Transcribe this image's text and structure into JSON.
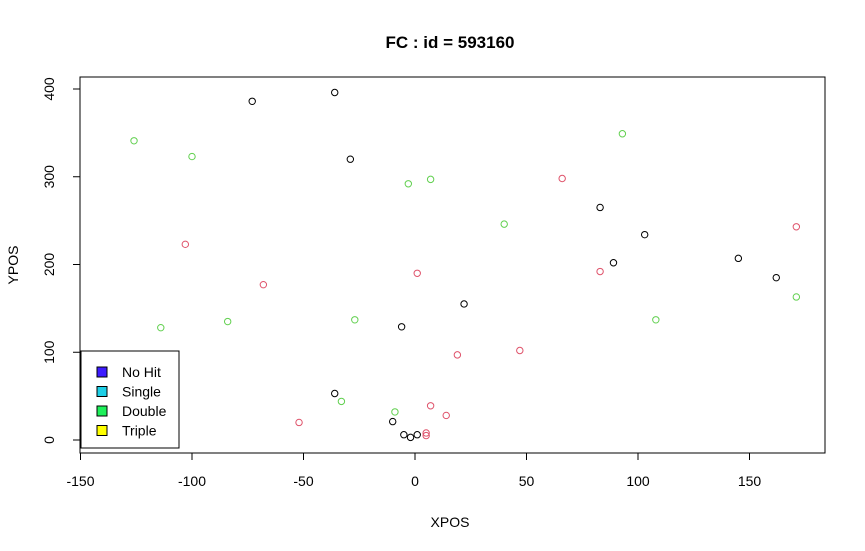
{
  "chart_data": {
    "type": "scatter",
    "title": "FC  : id = 593160",
    "xlabel": "XPOS",
    "ylabel": "YPOS",
    "xlim": [
      -150,
      180
    ],
    "ylim": [
      -10,
      410
    ],
    "x_ticks": [
      -150,
      -100,
      -50,
      0,
      50,
      100,
      150
    ],
    "y_ticks": [
      0,
      100,
      200,
      300,
      400
    ],
    "x_tick_labels": [
      "-150",
      "-100",
      "-50",
      "0",
      "50",
      "100",
      "150"
    ],
    "y_tick_labels": [
      "0",
      "100",
      "200",
      "300",
      "400"
    ],
    "grid": false,
    "legend": {
      "position": "bottom-left",
      "entries": [
        {
          "label": "No Hit",
          "color": "#3d1cff"
        },
        {
          "label": "Single",
          "color": "#1ecfe6"
        },
        {
          "label": "Double",
          "color": "#1ef05a"
        },
        {
          "label": "Triple",
          "color": "#ffff00"
        }
      ]
    },
    "point_colors": {
      "black": "#000000",
      "red": "#df536b",
      "green": "#61d04f"
    },
    "groups": [
      {
        "color_key": "black",
        "points": [
          {
            "x": -73,
            "y": 386
          },
          {
            "x": -36,
            "y": 396
          },
          {
            "x": -29,
            "y": 320
          },
          {
            "x": 22,
            "y": 155
          },
          {
            "x": -6,
            "y": 129
          },
          {
            "x": -36,
            "y": 53
          },
          {
            "x": -10,
            "y": 21
          },
          {
            "x": -5,
            "y": 6
          },
          {
            "x": -2,
            "y": 3
          },
          {
            "x": 1,
            "y": 6
          },
          {
            "x": 83,
            "y": 265
          },
          {
            "x": 103,
            "y": 234
          },
          {
            "x": 89,
            "y": 202
          },
          {
            "x": 145,
            "y": 207
          },
          {
            "x": 162,
            "y": 185
          }
        ]
      },
      {
        "color_key": "red",
        "points": [
          {
            "x": -103,
            "y": 223
          },
          {
            "x": -68,
            "y": 177
          },
          {
            "x": 1,
            "y": 190
          },
          {
            "x": 66,
            "y": 298
          },
          {
            "x": 83,
            "y": 192
          },
          {
            "x": 171,
            "y": 243
          },
          {
            "x": 19,
            "y": 97
          },
          {
            "x": 47,
            "y": 102
          },
          {
            "x": -52,
            "y": 20
          },
          {
            "x": 7,
            "y": 39
          },
          {
            "x": 14,
            "y": 28
          },
          {
            "x": 5,
            "y": 8
          },
          {
            "x": 5,
            "y": 5
          }
        ]
      },
      {
        "color_key": "green",
        "points": [
          {
            "x": -126,
            "y": 341
          },
          {
            "x": -100,
            "y": 323
          },
          {
            "x": -3,
            "y": 292
          },
          {
            "x": 7,
            "y": 297
          },
          {
            "x": 93,
            "y": 349
          },
          {
            "x": 40,
            "y": 246
          },
          {
            "x": -114,
            "y": 128
          },
          {
            "x": -84,
            "y": 135
          },
          {
            "x": -27,
            "y": 137
          },
          {
            "x": 108,
            "y": 137
          },
          {
            "x": 171,
            "y": 163
          },
          {
            "x": -33,
            "y": 44
          },
          {
            "x": -9,
            "y": 32
          }
        ]
      }
    ]
  }
}
